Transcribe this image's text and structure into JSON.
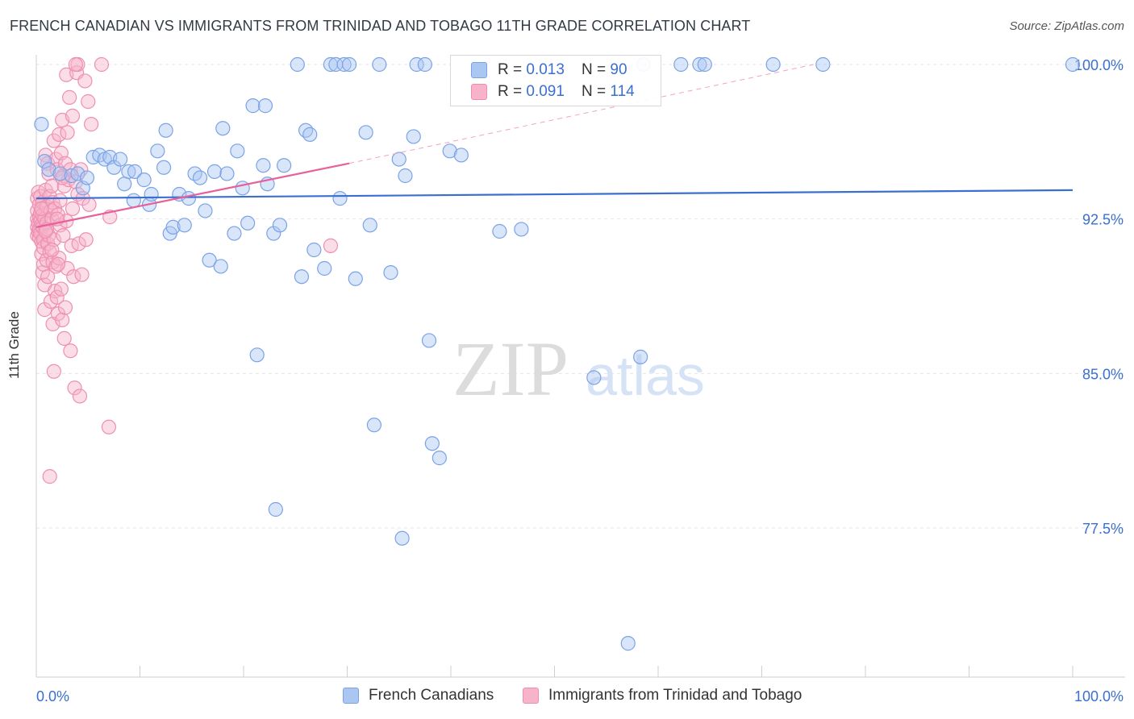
{
  "header": {
    "title": "FRENCH CANADIAN VS IMMIGRANTS FROM TRINIDAD AND TOBAGO 11TH GRADE CORRELATION CHART",
    "source": "Source: ZipAtlas.com"
  },
  "colors": {
    "blue": "#3a6fd0",
    "blue_fill": "#aac6f2",
    "blue_stroke": "#7aa3e6",
    "pink": "#e8609a",
    "pink_fill": "#f6b3c9",
    "pink_stroke": "#ee8fb1",
    "grid": "#e6e6e6",
    "tick_label": "#3a6fd0"
  },
  "stats_legend": {
    "blue": {
      "r_label": "R = ",
      "r_value": "0.013",
      "n_label": "N = ",
      "n_value": "90"
    },
    "pink": {
      "r_label": "R = ",
      "r_value": "0.091",
      "n_label": "N = ",
      "n_value": "114"
    }
  },
  "watermark": {
    "zip": "ZIP",
    "atlas": "atlas"
  },
  "chart_data": {
    "type": "scatter",
    "title": "FRENCH CANADIAN VS IMMIGRANTS FROM TRINIDAD AND TOBAGO 11TH GRADE CORRELATION CHART",
    "xlabel": "",
    "ylabel": "11th Grade",
    "xlim": [
      0,
      100
    ],
    "ylim": [
      70.5,
      100.7
    ],
    "x_tick_labels": [
      "0.0%",
      "100.0%"
    ],
    "y_ticks": [
      77.5,
      85.0,
      92.5,
      100.0
    ],
    "y_tick_labels": [
      "77.5%",
      "85.0%",
      "92.5%",
      "100.0%"
    ],
    "grid": true,
    "legend_position": "bottom",
    "series": [
      {
        "name": "French Canadians",
        "color": "blue",
        "trend": {
          "x": [
            0,
            100
          ],
          "y": [
            93.5,
            93.9
          ],
          "style": "solid"
        },
        "points": [
          [
            0.8,
            95.3
          ],
          [
            1.2,
            94.9
          ],
          [
            2.3,
            94.7
          ],
          [
            3.4,
            94.6
          ],
          [
            4.0,
            94.7
          ],
          [
            4.5,
            94.0
          ],
          [
            4.9,
            94.5
          ],
          [
            5.5,
            95.5
          ],
          [
            6.1,
            95.6
          ],
          [
            6.6,
            95.4
          ],
          [
            7.1,
            95.5
          ],
          [
            7.5,
            95.0
          ],
          [
            8.1,
            95.4
          ],
          [
            8.5,
            94.2
          ],
          [
            8.9,
            94.8
          ],
          [
            9.5,
            94.8
          ],
          [
            9.4,
            93.4
          ],
          [
            10.4,
            94.4
          ],
          [
            10.9,
            93.2
          ],
          [
            11.1,
            93.7
          ],
          [
            11.7,
            95.8
          ],
          [
            12.3,
            95.0
          ],
          [
            12.9,
            91.8
          ],
          [
            13.2,
            92.1
          ],
          [
            13.8,
            93.7
          ],
          [
            14.3,
            92.2
          ],
          [
            14.7,
            93.5
          ],
          [
            15.3,
            94.7
          ],
          [
            15.8,
            94.5
          ],
          [
            16.3,
            92.9
          ],
          [
            16.7,
            90.5
          ],
          [
            17.2,
            94.8
          ],
          [
            17.8,
            90.2
          ],
          [
            18.4,
            94.7
          ],
          [
            19.1,
            91.8
          ],
          [
            19.4,
            95.8
          ],
          [
            19.9,
            94.0
          ],
          [
            20.4,
            92.3
          ],
          [
            20.9,
            98.0
          ],
          [
            21.3,
            85.9
          ],
          [
            21.9,
            95.1
          ],
          [
            22.3,
            94.2
          ],
          [
            22.9,
            91.8
          ],
          [
            23.1,
            78.4
          ],
          [
            23.5,
            92.2
          ],
          [
            23.9,
            95.1
          ],
          [
            25.2,
            100.0
          ],
          [
            25.6,
            89.7
          ],
          [
            26.0,
            96.8
          ],
          [
            26.4,
            96.6
          ],
          [
            26.8,
            91.0
          ],
          [
            27.8,
            90.1
          ],
          [
            28.4,
            100.0
          ],
          [
            28.9,
            100.0
          ],
          [
            29.3,
            93.5
          ],
          [
            29.7,
            100.0
          ],
          [
            30.2,
            100.0
          ],
          [
            30.8,
            89.6
          ],
          [
            31.8,
            96.7
          ],
          [
            32.2,
            92.2
          ],
          [
            32.6,
            82.5
          ],
          [
            33.1,
            100.0
          ],
          [
            34.2,
            89.9
          ],
          [
            35.0,
            95.4
          ],
          [
            35.6,
            94.6
          ],
          [
            36.4,
            96.5
          ],
          [
            36.7,
            100.0
          ],
          [
            37.5,
            100.0
          ],
          [
            37.9,
            86.6
          ],
          [
            38.2,
            81.6
          ],
          [
            38.9,
            80.9
          ],
          [
            39.9,
            95.8
          ],
          [
            41.0,
            95.6
          ],
          [
            44.7,
            91.9
          ],
          [
            46.8,
            92.0
          ],
          [
            53.8,
            84.8
          ],
          [
            57.1,
            71.9
          ],
          [
            58.3,
            85.8
          ],
          [
            58.6,
            100.0
          ],
          [
            62.2,
            100.0
          ],
          [
            64.0,
            100.0
          ],
          [
            64.5,
            100.0
          ],
          [
            71.1,
            100.0
          ],
          [
            75.9,
            100.0
          ],
          [
            100.0,
            100.0
          ],
          [
            35.3,
            77.0
          ],
          [
            22.1,
            98.0
          ],
          [
            12.5,
            96.8
          ],
          [
            0.5,
            97.1
          ],
          [
            18.0,
            96.9
          ]
        ]
      },
      {
        "name": "Immigrants from Trinidad and Tobago",
        "color": "pink",
        "trend": {
          "x": [
            0,
            30.2
          ],
          "y": [
            92.1,
            95.2
          ],
          "style": "solid",
          "extended": {
            "x": [
              30.2,
              75.0
            ],
            "y": [
              95.2,
              100.0
            ],
            "style": "dashed"
          }
        },
        "points": [
          [
            0.1,
            93.5
          ],
          [
            0.1,
            92.9
          ],
          [
            0.1,
            92.5
          ],
          [
            0.1,
            92.1
          ],
          [
            0.1,
            91.7
          ],
          [
            0.2,
            93.8
          ],
          [
            0.2,
            92.3
          ],
          [
            0.2,
            91.9
          ],
          [
            0.3,
            93.2
          ],
          [
            0.3,
            92.6
          ],
          [
            0.3,
            92.0
          ],
          [
            0.3,
            91.6
          ],
          [
            0.4,
            93.6
          ],
          [
            0.4,
            92.8
          ],
          [
            0.4,
            92.4
          ],
          [
            0.4,
            91.8
          ],
          [
            0.5,
            92.2
          ],
          [
            0.5,
            91.4
          ],
          [
            0.5,
            90.8
          ],
          [
            0.6,
            93.3
          ],
          [
            0.6,
            92.7
          ],
          [
            0.6,
            92.1
          ],
          [
            0.6,
            89.9
          ],
          [
            0.7,
            91.5
          ],
          [
            0.7,
            91.1
          ],
          [
            0.7,
            90.3
          ],
          [
            0.8,
            92.5
          ],
          [
            0.8,
            89.3
          ],
          [
            0.8,
            88.1
          ],
          [
            0.9,
            95.6
          ],
          [
            0.9,
            93.9
          ],
          [
            0.9,
            91.9
          ],
          [
            1.0,
            93.1
          ],
          [
            1.0,
            92.3
          ],
          [
            1.0,
            90.5
          ],
          [
            1.1,
            95.2
          ],
          [
            1.1,
            91.3
          ],
          [
            1.1,
            89.7
          ],
          [
            1.2,
            94.7
          ],
          [
            1.2,
            91.7
          ],
          [
            1.3,
            93.6
          ],
          [
            1.3,
            90.9
          ],
          [
            1.3,
            80.0
          ],
          [
            1.4,
            92.9
          ],
          [
            1.4,
            88.5
          ],
          [
            1.5,
            94.1
          ],
          [
            1.5,
            92.5
          ],
          [
            1.6,
            93.3
          ],
          [
            1.6,
            90.4
          ],
          [
            1.6,
            87.4
          ],
          [
            1.7,
            96.3
          ],
          [
            1.7,
            91.5
          ],
          [
            1.7,
            85.1
          ],
          [
            1.8,
            93.0
          ],
          [
            1.8,
            89.0
          ],
          [
            1.9,
            95.4
          ],
          [
            1.9,
            90.2
          ],
          [
            2.0,
            94.9
          ],
          [
            2.0,
            88.7
          ],
          [
            2.1,
            92.7
          ],
          [
            2.1,
            87.9
          ],
          [
            2.2,
            96.6
          ],
          [
            2.2,
            90.6
          ],
          [
            2.3,
            93.4
          ],
          [
            2.3,
            92.2
          ],
          [
            2.4,
            95.7
          ],
          [
            2.4,
            89.1
          ],
          [
            2.5,
            97.3
          ],
          [
            2.5,
            87.6
          ],
          [
            2.6,
            94.6
          ],
          [
            2.6,
            91.7
          ],
          [
            2.7,
            94.1
          ],
          [
            2.7,
            86.7
          ],
          [
            2.8,
            95.2
          ],
          [
            2.8,
            88.2
          ],
          [
            2.9,
            99.5
          ],
          [
            2.9,
            92.4
          ],
          [
            3.0,
            96.7
          ],
          [
            3.0,
            90.1
          ],
          [
            3.1,
            94.4
          ],
          [
            3.2,
            98.4
          ],
          [
            3.3,
            94.9
          ],
          [
            3.3,
            86.1
          ],
          [
            3.4,
            91.2
          ],
          [
            3.5,
            97.5
          ],
          [
            3.6,
            89.7
          ],
          [
            3.7,
            84.3
          ],
          [
            3.8,
            94.3
          ],
          [
            3.9,
            99.6
          ],
          [
            4.0,
            93.7
          ],
          [
            4.1,
            91.3
          ],
          [
            4.2,
            83.9
          ],
          [
            4.3,
            94.9
          ],
          [
            4.4,
            89.8
          ],
          [
            4.5,
            93.5
          ],
          [
            4.7,
            99.2
          ],
          [
            4.8,
            91.5
          ],
          [
            5.0,
            98.2
          ],
          [
            5.1,
            93.2
          ],
          [
            5.3,
            97.1
          ],
          [
            2.5,
            94.5
          ],
          [
            1.0,
            92.0
          ],
          [
            0.5,
            93.0
          ],
          [
            1.5,
            91.0
          ],
          [
            2.0,
            92.5
          ],
          [
            3.5,
            93.0
          ],
          [
            4.0,
            100.0
          ],
          [
            6.3,
            100.0
          ],
          [
            7.0,
            82.4
          ],
          [
            7.1,
            92.6
          ],
          [
            28.4,
            91.2
          ],
          [
            3.8,
            100.0
          ],
          [
            0.9,
            91.9
          ],
          [
            2.1,
            90.3
          ]
        ]
      }
    ]
  },
  "bottom_legend": {
    "blue_label": "French Canadians",
    "pink_label": "Immigrants from Trinidad and Tobago"
  }
}
